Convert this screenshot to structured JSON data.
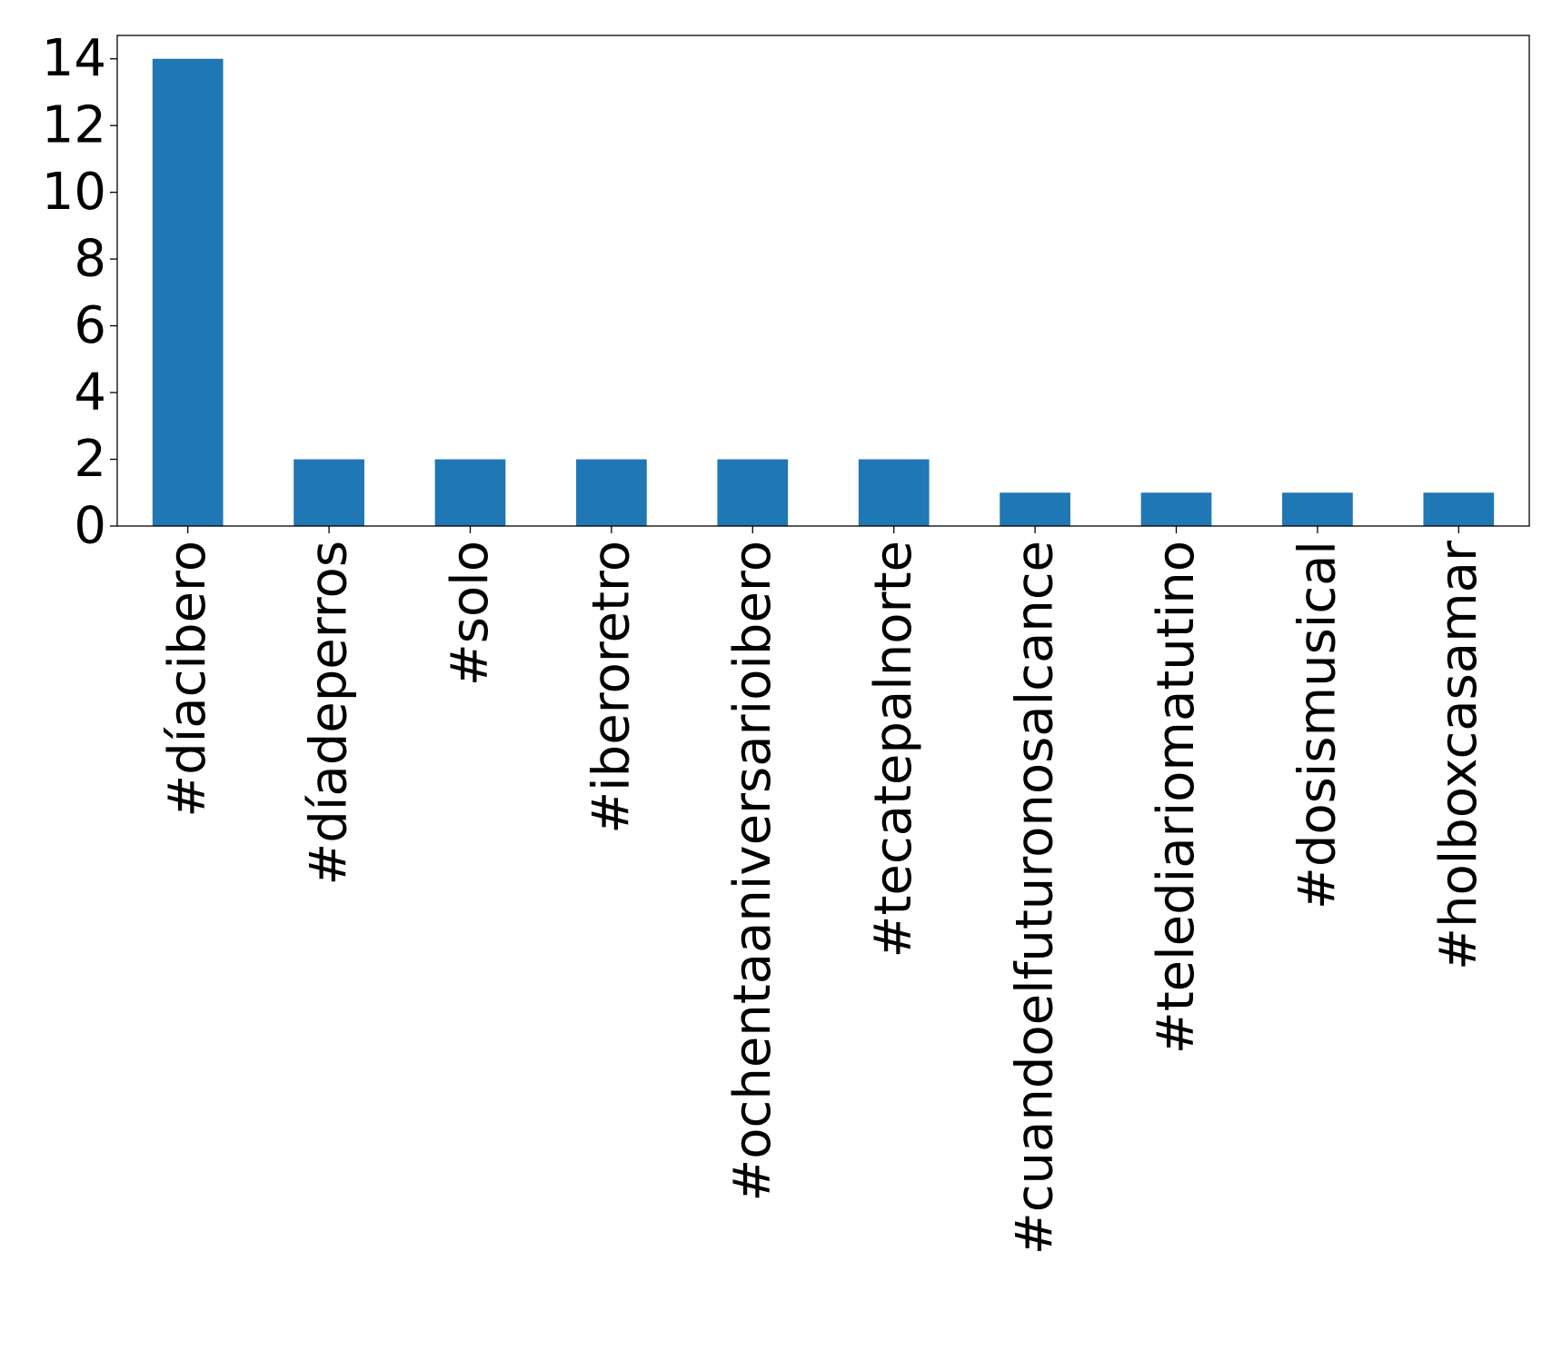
{
  "chart_data": {
    "type": "bar",
    "title": "",
    "xlabel": "",
    "ylabel": "",
    "categories": [
      "#díacibero",
      "#díadeperros",
      "#solo",
      "#iberoretro",
      "#ochentaaniversarioibero",
      "#tecatepalnorte",
      "#cuandoelfuturonosalcance",
      "#telediariomatutino",
      "#dosismusical",
      "#holboxcasamar"
    ],
    "values": [
      14,
      2,
      2,
      2,
      2,
      2,
      1,
      1,
      1,
      1
    ],
    "ylim": [
      0,
      14.7
    ],
    "yticks": [
      "0",
      "2",
      "4",
      "6",
      "8",
      "10",
      "12",
      "14"
    ],
    "grid": false,
    "legend": "none",
    "colors": {
      "bar": "#1f77b4",
      "axis": "#000000",
      "background": "#ffffff"
    }
  }
}
